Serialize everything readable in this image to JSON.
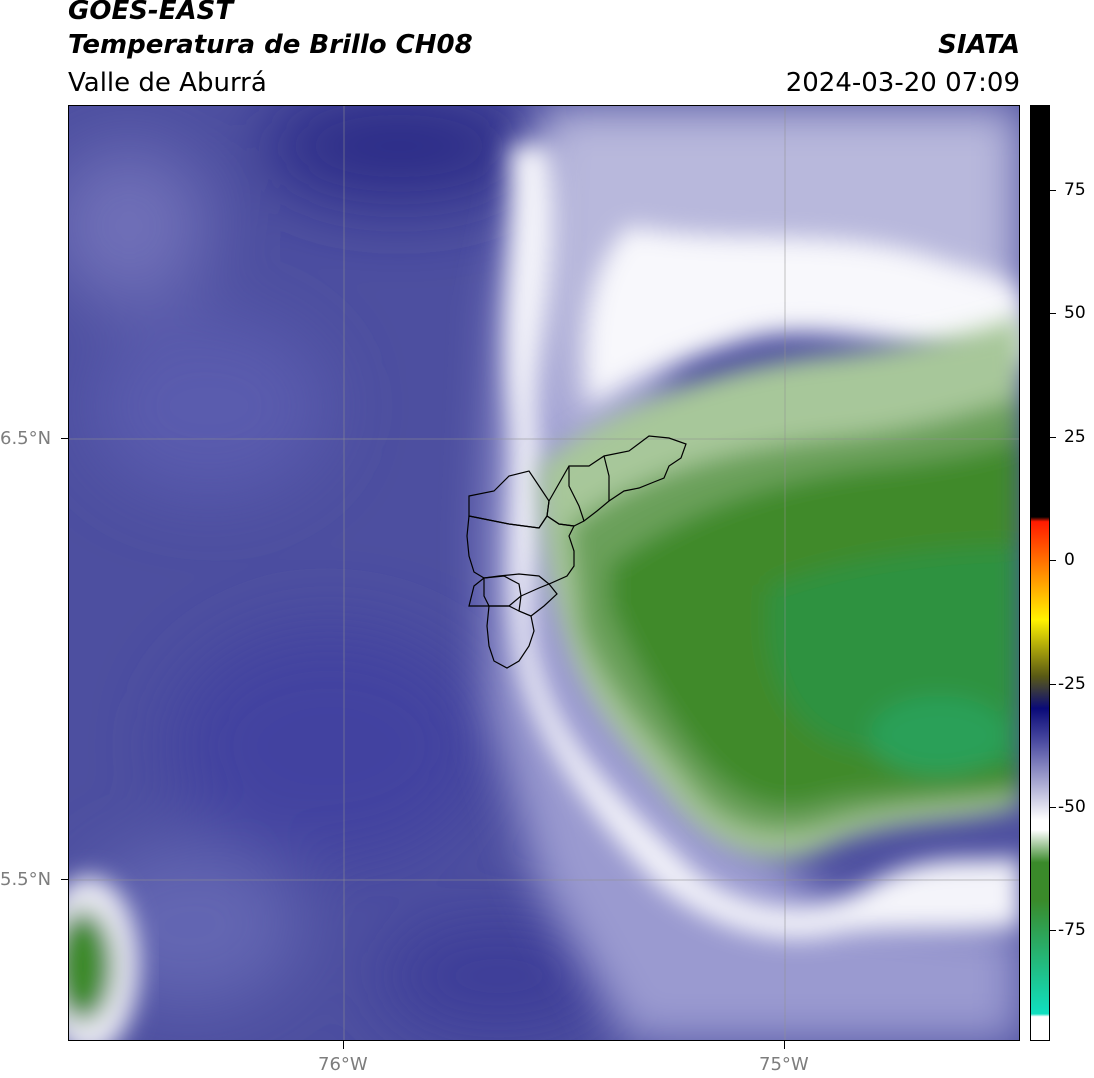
{
  "header": {
    "satellite": "GOES-EAST",
    "product": "Temperatura de Brillo CH08",
    "region": "Valle de Aburrá",
    "organization": "SIATA",
    "datetime": "2024-03-20 07:09"
  },
  "map": {
    "lon_range": [
      -76.62,
      -74.47
    ],
    "lat_range": [
      5.13,
      7.25
    ],
    "x_ticks": [
      {
        "lon": -76.0,
        "label": "76°W"
      },
      {
        "lon": -75.0,
        "label": "75°W"
      }
    ],
    "y_ticks": [
      {
        "lat": 6.5,
        "label": "6.5°N"
      },
      {
        "lat": 5.5,
        "label": "5.5°N"
      }
    ],
    "gridlines": true,
    "overlay": "municipal boundaries of Valle de Aburrá"
  },
  "colorbar": {
    "range": [
      -95,
      95
    ],
    "ticks": [
      75,
      50,
      25,
      0,
      -25,
      -50,
      -75
    ],
    "tick_labels": [
      "75",
      "50",
      "25",
      "0",
      "-25",
      "-50",
      "-75"
    ],
    "colors": {
      "black": "#000000",
      "red": "#ff1a00",
      "orange": "#ff8c00",
      "yellow": "#fff200",
      "olive": "#5a5a14",
      "navy": "#0a0a78",
      "slate": "#4a4aa0",
      "lavender": "#b4b4d8",
      "white": "#ffffff",
      "green": "#3a8a2a",
      "cyan": "#10e0c0"
    }
  }
}
